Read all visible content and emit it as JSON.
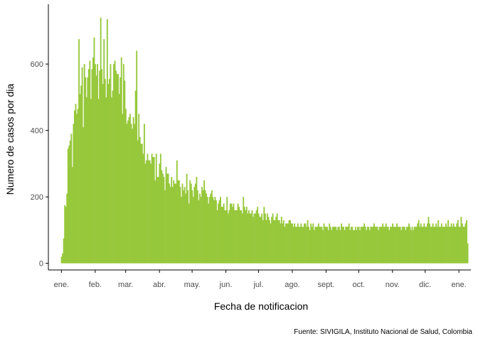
{
  "chart_data": {
    "type": "bar",
    "xlabel": "Fecha de notificacion",
    "ylabel": "Numero de casos por dia",
    "caption": "Fuente: SIVIGILA, Instituto Nacional de Salud, Colombia",
    "bar_color": "#97c83c",
    "axis_color": "#000000",
    "tick_label_color": "#4d4d4d",
    "grid": false,
    "x_start_date": "2021-01-01",
    "x_end_date": "2022-01-01",
    "xlim_dates": [
      "2020-12-20",
      "2022-01-12"
    ],
    "ylim": [
      -20,
      780
    ],
    "y_ticks": [
      {
        "value": 0,
        "label": "0"
      },
      {
        "value": 200,
        "label": "200"
      },
      {
        "value": 400,
        "label": "400"
      },
      {
        "value": 600,
        "label": "600"
      }
    ],
    "x_ticks": [
      {
        "date": "2021-01-01",
        "label": "ene."
      },
      {
        "date": "2021-02-01",
        "label": "feb."
      },
      {
        "date": "2021-03-01",
        "label": "mar."
      },
      {
        "date": "2021-04-01",
        "label": "abr."
      },
      {
        "date": "2021-05-01",
        "label": "may."
      },
      {
        "date": "2021-06-01",
        "label": "jun."
      },
      {
        "date": "2021-07-01",
        "label": "jul."
      },
      {
        "date": "2021-08-01",
        "label": "ago."
      },
      {
        "date": "2021-09-01",
        "label": "sept."
      },
      {
        "date": "2021-10-01",
        "label": "oct."
      },
      {
        "date": "2021-11-01",
        "label": "nov."
      },
      {
        "date": "2021-12-01",
        "label": "dic."
      },
      {
        "date": "2022-01-01",
        "label": "ene."
      }
    ],
    "values": [
      20,
      30,
      75,
      175,
      170,
      210,
      345,
      355,
      370,
      390,
      290,
      420,
      460,
      480,
      450,
      465,
      675,
      510,
      535,
      590,
      410,
      600,
      560,
      500,
      560,
      585,
      610,
      495,
      585,
      620,
      680,
      600,
      565,
      600,
      495,
      580,
      740,
      585,
      540,
      675,
      555,
      500,
      735,
      540,
      555,
      600,
      500,
      520,
      600,
      610,
      580,
      570,
      570,
      510,
      560,
      620,
      450,
      600,
      550,
      465,
      420,
      430,
      440,
      450,
      420,
      405,
      440,
      420,
      520,
      640,
      370,
      450,
      380,
      360,
      360,
      330,
      420,
      300,
      310,
      330,
      310,
      310,
      300,
      330,
      320,
      320,
      250,
      330,
      260,
      260,
      300,
      330,
      280,
      270,
      260,
      220,
      290,
      270,
      270,
      240,
      230,
      260,
      230,
      250,
      240,
      240,
      310,
      250,
      250,
      230,
      200,
      240,
      220,
      230,
      210,
      270,
      220,
      180,
      250,
      240,
      220,
      200,
      230,
      240,
      260,
      220,
      190,
      210,
      200,
      230,
      220,
      250,
      220,
      210,
      200,
      180,
      200,
      210,
      220,
      200,
      190,
      200,
      190,
      160,
      180,
      190,
      200,
      170,
      170,
      180,
      160,
      160,
      200,
      150,
      160,
      180,
      180,
      170,
      180,
      160,
      160,
      160,
      180,
      170,
      160,
      160,
      150,
      200,
      170,
      160,
      170,
      150,
      160,
      150,
      150,
      160,
      140,
      150,
      150,
      160,
      170,
      150,
      140,
      140,
      150,
      130,
      170,
      150,
      130,
      150,
      140,
      130,
      120,
      140,
      150,
      130,
      130,
      140,
      150,
      130,
      130,
      120,
      140,
      120,
      130,
      110,
      120,
      120,
      120,
      130,
      130,
      120,
      120,
      110,
      120,
      110,
      110,
      120,
      110,
      110,
      120,
      110,
      110,
      120,
      120,
      110,
      130,
      110,
      100,
      120,
      110,
      120,
      100,
      110,
      110,
      110,
      120,
      110,
      110,
      110,
      100,
      120,
      110,
      110,
      110,
      100,
      120,
      110,
      100,
      110,
      110,
      110,
      110,
      100,
      110,
      110,
      100,
      120,
      110,
      110,
      100,
      110,
      110,
      110,
      120,
      100,
      110,
      110,
      100,
      100,
      110,
      100,
      110,
      110,
      100,
      110,
      110,
      110,
      120,
      110,
      100,
      110,
      110,
      100,
      110,
      110,
      110,
      120,
      110,
      110,
      110,
      100,
      110,
      110,
      110,
      120,
      110,
      110,
      120,
      110,
      110,
      100,
      110,
      110,
      120,
      110,
      110,
      110,
      120,
      110,
      110,
      110,
      100,
      110,
      110,
      110,
      100,
      110,
      110,
      120,
      110,
      100,
      110,
      100,
      110,
      110,
      110,
      120,
      130,
      110,
      120,
      110,
      110,
      120,
      110,
      110,
      120,
      140,
      120,
      110,
      110,
      120,
      110,
      110,
      120,
      110,
      130,
      110,
      110,
      120,
      110,
      110,
      110,
      120,
      110,
      130,
      110,
      110,
      120,
      110,
      120,
      110,
      110,
      120,
      130,
      110,
      110,
      140,
      120,
      110,
      110,
      120,
      130,
      60
    ]
  }
}
